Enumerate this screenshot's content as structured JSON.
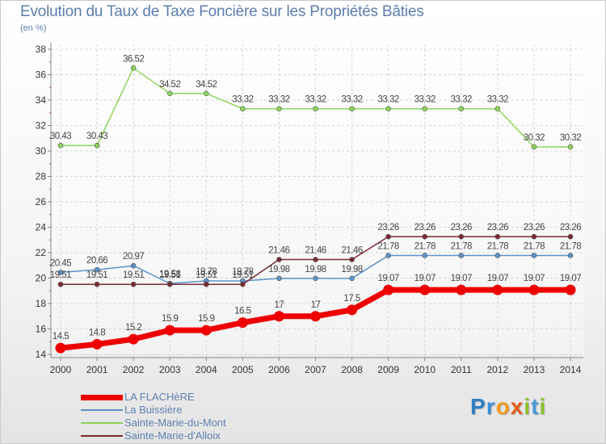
{
  "title": "Evolution du Taux de Taxe Foncière sur les Propriétés Bâties",
  "unit_label": "(en %)",
  "logo": {
    "text": "Proxiti",
    "letters": [
      "P",
      "r",
      "o",
      "x",
      "i",
      "t",
      "i"
    ]
  },
  "chart_data": {
    "type": "line",
    "title": "Evolution du Taux de Taxe Foncière sur les Propriétés Bâties",
    "ylabel": "(en %)",
    "xlabel": "",
    "ylim": [
      14,
      38
    ],
    "yticks": [
      14,
      16,
      18,
      20,
      22,
      24,
      26,
      28,
      30,
      32,
      34,
      36,
      38
    ],
    "grid": true,
    "legend_position": "bottom-left",
    "x": [
      "2000",
      "2001",
      "2002",
      "2003",
      "2004",
      "2005",
      "2006",
      "2007",
      "2008",
      "2009",
      "2010",
      "2011",
      "2012",
      "2013",
      "2014"
    ],
    "series": [
      {
        "name": "Sainte-Marie-du-Mont",
        "color": "#8ed45a",
        "values": [
          30.43,
          30.43,
          36.52,
          34.52,
          34.52,
          33.32,
          33.32,
          33.32,
          33.32,
          33.32,
          33.32,
          33.32,
          33.32,
          30.32,
          30.32
        ],
        "labels": [
          "30.43",
          "30.43",
          "36.52",
          "34.52",
          "34.52",
          "33.32",
          "33.32",
          "33.32",
          "33.32",
          "33.32",
          "33.32",
          "33.32",
          "33.32",
          "30.32",
          "30.32"
        ]
      },
      {
        "name": "La Buissière",
        "color": "#5b93c9",
        "values": [
          20.45,
          20.66,
          20.97,
          19.58,
          19.78,
          19.78,
          19.98,
          19.98,
          19.98,
          21.78,
          21.78,
          21.78,
          21.78,
          21.78,
          21.78
        ],
        "labels": [
          "20.45",
          "20.66",
          "20.97",
          "19.58",
          "19.78",
          "19.78",
          "19.98",
          "19.98",
          "19.98",
          "21.78",
          "21.78",
          "21.78",
          "21.78",
          "21.78",
          "21.78"
        ]
      },
      {
        "name": "Sainte-Marie-d'Alloix",
        "color": "#7a2a33",
        "values": [
          19.51,
          19.51,
          19.51,
          19.51,
          19.51,
          19.51,
          21.46,
          21.46,
          21.46,
          23.26,
          23.26,
          23.26,
          23.26,
          23.26,
          23.26
        ],
        "labels": [
          "19.51",
          "19.51",
          "19.51",
          "19.51",
          "19.51",
          "19.51",
          "21.46",
          "21.46",
          "21.46",
          "23.26",
          "23.26",
          "23.26",
          "23.26",
          "23.26",
          "23.26"
        ]
      },
      {
        "name": "LA FLACHèRE",
        "color": "#ee0000",
        "values": [
          14.5,
          14.8,
          15.2,
          15.9,
          15.9,
          16.5,
          17,
          17,
          17.5,
          19.07,
          19.07,
          19.07,
          19.07,
          19.07,
          19.07
        ],
        "labels": [
          "14.5",
          "14.8",
          "15.2",
          "15.9",
          "15.9",
          "16.5",
          "17",
          "17",
          "17.5",
          "19.07",
          "19.07",
          "19.07",
          "19.07",
          "19.07",
          "19.07"
        ]
      }
    ],
    "legend": [
      {
        "name": "LA FLACHèRE",
        "color": "#ee0000",
        "thick": true
      },
      {
        "name": "La Buissière",
        "color": "#5b93c9",
        "thick": false
      },
      {
        "name": "Sainte-Marie-du-Mont",
        "color": "#8ed45a",
        "thick": false
      },
      {
        "name": "Sainte-Marie-d'Alloix",
        "color": "#7a2a33",
        "thick": false
      }
    ]
  }
}
